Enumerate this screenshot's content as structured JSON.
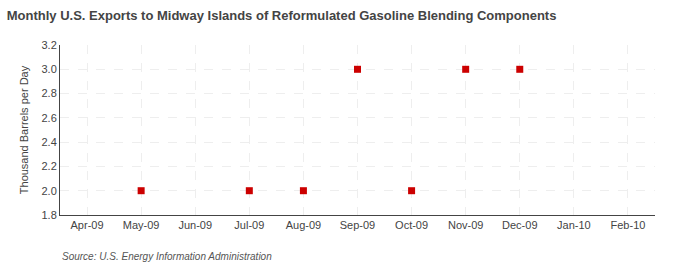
{
  "chart_data": {
    "type": "scatter",
    "title": "Monthly U.S. Exports to Midway Islands of Reformulated Gasoline Blending Components",
    "ylabel": "Thousand Barrels per Day",
    "annotations": [
      "Source: U.S. Energy Information Administration"
    ],
    "categories": [
      "Apr-09",
      "May-09",
      "Jun-09",
      "Jul-09",
      "Aug-09",
      "Sep-09",
      "Oct-09",
      "Nov-09",
      "Dec-09",
      "Jan-10",
      "Feb-10"
    ],
    "values": [
      null,
      2.0,
      null,
      2.0,
      2.0,
      3.0,
      2.0,
      3.0,
      3.0,
      null,
      null
    ],
    "color": "#cc0000",
    "marker": "square",
    "ylim": [
      1.8,
      3.2
    ],
    "yticks": [
      1.8,
      {
        "value": 2.0,
        "label": "2.0"
      },
      2.2,
      2.4,
      2.6,
      2.8,
      {
        "value": 3.0,
        "label": "3.0"
      },
      3.2
    ],
    "grid": true
  }
}
